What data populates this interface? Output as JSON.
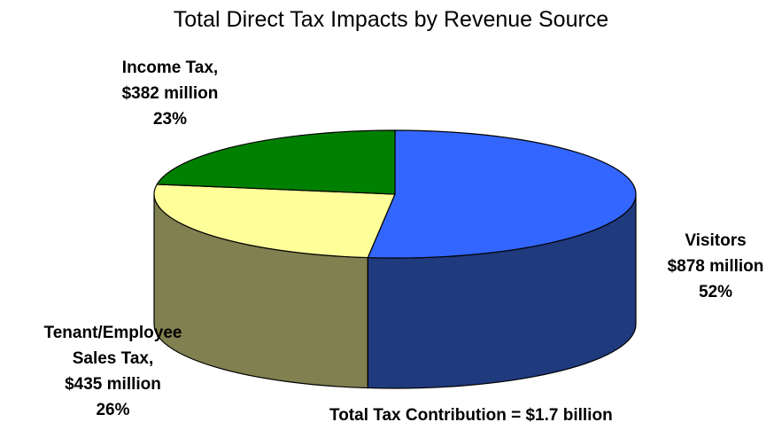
{
  "chart_data": {
    "type": "pie",
    "title": "Total Direct Tax Impacts by Revenue Source",
    "slices": [
      {
        "label": "Visitors",
        "value_text": "$878 million",
        "value": 878,
        "percent": 52,
        "percent_text": "52%",
        "color": "#3366ff",
        "side_color": "#1f3a7d"
      },
      {
        "label": "Tenant/Employee Sales Tax,",
        "value_text": "$435 million",
        "value": 435,
        "percent": 26,
        "percent_text": "26%",
        "color": "#ffff99",
        "side_color": "#808050"
      },
      {
        "label": "Income Tax,",
        "value_text": "$382 million",
        "value": 382,
        "percent": 23,
        "percent_text": "23%",
        "color": "#008000",
        "side_color": "#004d00"
      }
    ],
    "footnote": "Total Tax Contribution = $1.7 billion"
  },
  "labels": {
    "income": {
      "line1": "Income Tax,",
      "line2": "$382 million",
      "line3": "23%"
    },
    "visitors": {
      "line1": "Visitors",
      "line2": "$878 million",
      "line3": "52%"
    },
    "tenant": {
      "line1": "Tenant/Employee",
      "line2": "Sales Tax,",
      "line3": "$435 million",
      "line4": "26%"
    }
  }
}
